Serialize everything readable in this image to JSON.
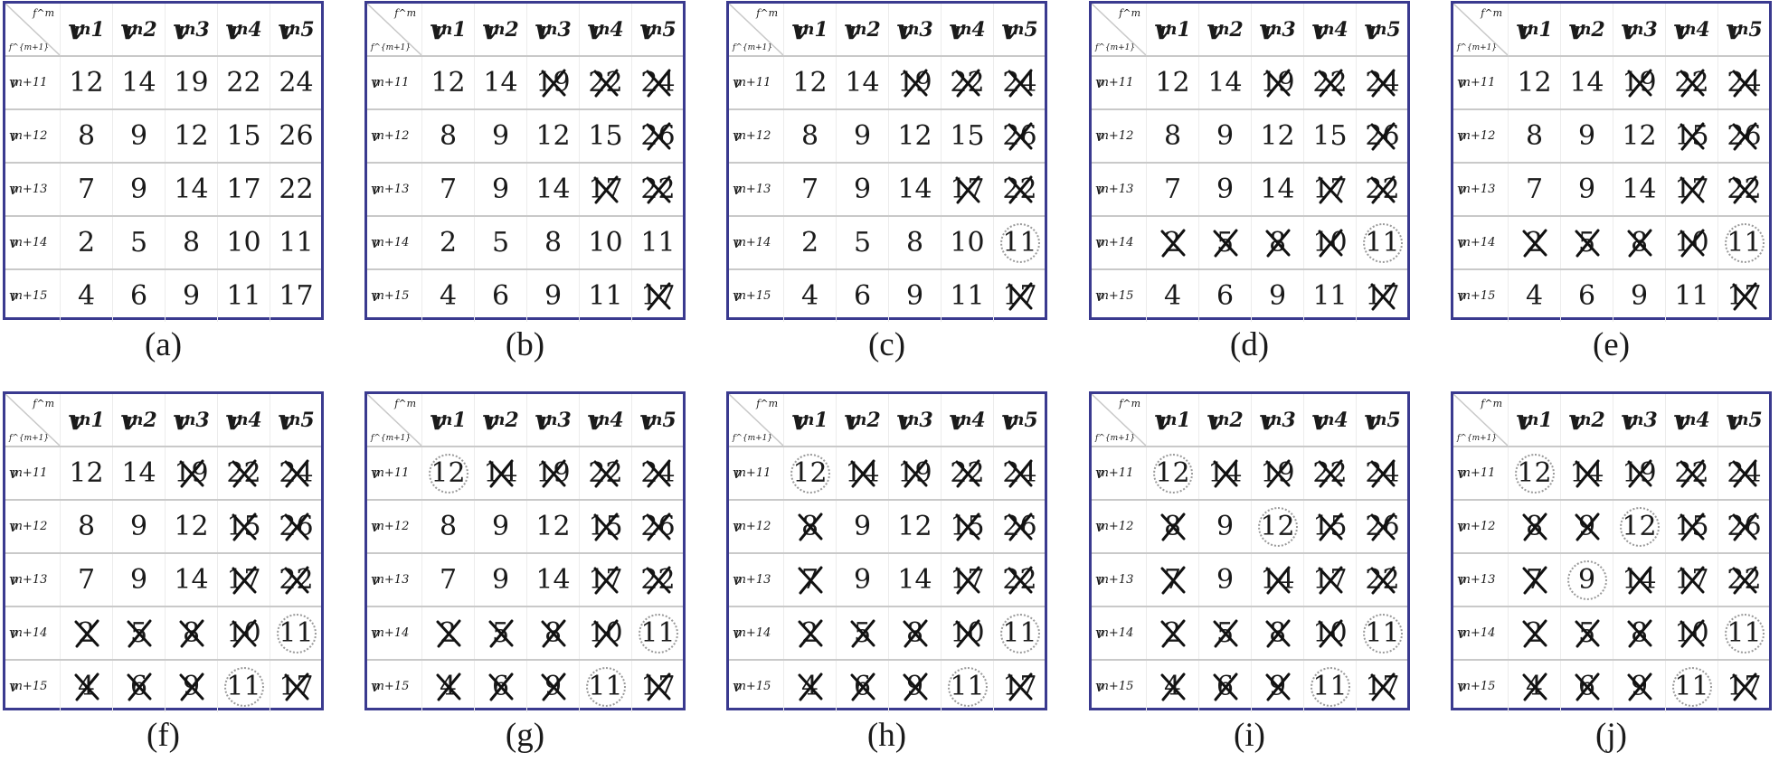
{
  "figure": {
    "col_heads": [
      "v",
      "v",
      "v",
      "v",
      "v"
    ],
    "col_subs": [
      "1",
      "2",
      "3",
      "4",
      "5"
    ],
    "col_sup": "m",
    "row_heads": [
      "v",
      "v",
      "v",
      "v",
      "v"
    ],
    "row_subs": [
      "1",
      "2",
      "3",
      "4",
      "5"
    ],
    "row_sup": "m+1",
    "corner_top": "f^m",
    "corner_bottom": "f^{m+1}",
    "matrix": [
      [
        "12",
        "14",
        "19",
        "22",
        "24"
      ],
      [
        "8",
        "9",
        "12",
        "15",
        "26"
      ],
      [
        "7",
        "9",
        "14",
        "17",
        "22"
      ],
      [
        "2",
        "5",
        "8",
        "10",
        "11"
      ],
      [
        "4",
        "6",
        "9",
        "11",
        "17"
      ]
    ],
    "panels": [
      {
        "label": "(a)",
        "crossed": [],
        "circled": []
      },
      {
        "label": "(b)",
        "crossed": [
          [
            0,
            2
          ],
          [
            0,
            3
          ],
          [
            0,
            4
          ],
          [
            1,
            4
          ],
          [
            2,
            3
          ],
          [
            2,
            4
          ],
          [
            4,
            4
          ]
        ],
        "circled": []
      },
      {
        "label": "(c)",
        "crossed": [
          [
            0,
            2
          ],
          [
            0,
            3
          ],
          [
            0,
            4
          ],
          [
            1,
            4
          ],
          [
            2,
            3
          ],
          [
            2,
            4
          ],
          [
            4,
            4
          ]
        ],
        "circled": [
          [
            3,
            4
          ]
        ]
      },
      {
        "label": "(d)",
        "crossed": [
          [
            0,
            2
          ],
          [
            0,
            3
          ],
          [
            0,
            4
          ],
          [
            1,
            4
          ],
          [
            2,
            3
          ],
          [
            2,
            4
          ],
          [
            3,
            0
          ],
          [
            3,
            1
          ],
          [
            3,
            2
          ],
          [
            3,
            3
          ],
          [
            4,
            4
          ]
        ],
        "circled": [
          [
            3,
            4
          ]
        ]
      },
      {
        "label": "(e)",
        "crossed": [
          [
            0,
            2
          ],
          [
            0,
            3
          ],
          [
            0,
            4
          ],
          [
            1,
            3
          ],
          [
            1,
            4
          ],
          [
            2,
            3
          ],
          [
            2,
            4
          ],
          [
            3,
            0
          ],
          [
            3,
            1
          ],
          [
            3,
            2
          ],
          [
            3,
            3
          ],
          [
            4,
            4
          ]
        ],
        "circled": [
          [
            3,
            4
          ]
        ]
      },
      {
        "label": "(f)",
        "crossed": [
          [
            0,
            2
          ],
          [
            0,
            3
          ],
          [
            0,
            4
          ],
          [
            1,
            3
          ],
          [
            1,
            4
          ],
          [
            2,
            3
          ],
          [
            2,
            4
          ],
          [
            3,
            0
          ],
          [
            3,
            1
          ],
          [
            3,
            2
          ],
          [
            3,
            3
          ],
          [
            4,
            0
          ],
          [
            4,
            1
          ],
          [
            4,
            2
          ],
          [
            4,
            4
          ]
        ],
        "circled": [
          [
            3,
            4
          ],
          [
            4,
            3
          ]
        ]
      },
      {
        "label": "(g)",
        "crossed": [
          [
            0,
            1
          ],
          [
            0,
            2
          ],
          [
            0,
            3
          ],
          [
            0,
            4
          ],
          [
            1,
            3
          ],
          [
            1,
            4
          ],
          [
            2,
            3
          ],
          [
            2,
            4
          ],
          [
            3,
            0
          ],
          [
            3,
            1
          ],
          [
            3,
            2
          ],
          [
            3,
            3
          ],
          [
            4,
            0
          ],
          [
            4,
            1
          ],
          [
            4,
            2
          ],
          [
            4,
            4
          ]
        ],
        "circled": [
          [
            0,
            0
          ],
          [
            3,
            4
          ],
          [
            4,
            3
          ]
        ]
      },
      {
        "label": "(h)",
        "crossed": [
          [
            0,
            1
          ],
          [
            0,
            2
          ],
          [
            0,
            3
          ],
          [
            0,
            4
          ],
          [
            1,
            0
          ],
          [
            1,
            3
          ],
          [
            1,
            4
          ],
          [
            2,
            0
          ],
          [
            2,
            3
          ],
          [
            2,
            4
          ],
          [
            3,
            0
          ],
          [
            3,
            1
          ],
          [
            3,
            2
          ],
          [
            3,
            3
          ],
          [
            4,
            0
          ],
          [
            4,
            1
          ],
          [
            4,
            2
          ],
          [
            4,
            4
          ]
        ],
        "circled": [
          [
            0,
            0
          ],
          [
            3,
            4
          ],
          [
            4,
            3
          ]
        ]
      },
      {
        "label": "(i)",
        "crossed": [
          [
            0,
            1
          ],
          [
            0,
            2
          ],
          [
            0,
            3
          ],
          [
            0,
            4
          ],
          [
            1,
            0
          ],
          [
            1,
            3
          ],
          [
            1,
            4
          ],
          [
            2,
            0
          ],
          [
            2,
            2
          ],
          [
            2,
            3
          ],
          [
            2,
            4
          ],
          [
            3,
            0
          ],
          [
            3,
            1
          ],
          [
            3,
            2
          ],
          [
            3,
            3
          ],
          [
            4,
            0
          ],
          [
            4,
            1
          ],
          [
            4,
            2
          ],
          [
            4,
            4
          ]
        ],
        "circled": [
          [
            0,
            0
          ],
          [
            1,
            2
          ],
          [
            3,
            4
          ],
          [
            4,
            3
          ]
        ]
      },
      {
        "label": "(j)",
        "crossed": [
          [
            0,
            1
          ],
          [
            0,
            2
          ],
          [
            0,
            3
          ],
          [
            0,
            4
          ],
          [
            1,
            0
          ],
          [
            1,
            1
          ],
          [
            1,
            3
          ],
          [
            1,
            4
          ],
          [
            2,
            0
          ],
          [
            2,
            2
          ],
          [
            2,
            3
          ],
          [
            2,
            4
          ],
          [
            3,
            0
          ],
          [
            3,
            1
          ],
          [
            3,
            2
          ],
          [
            3,
            3
          ],
          [
            4,
            0
          ],
          [
            4,
            1
          ],
          [
            4,
            2
          ],
          [
            4,
            4
          ]
        ],
        "circled": [
          [
            0,
            0
          ],
          [
            1,
            2
          ],
          [
            2,
            1
          ],
          [
            3,
            4
          ],
          [
            4,
            3
          ]
        ]
      }
    ]
  }
}
